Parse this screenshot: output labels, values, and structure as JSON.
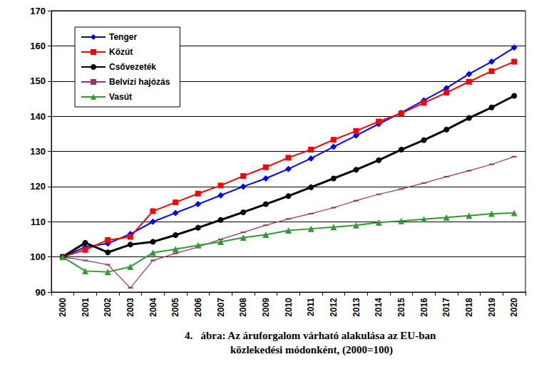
{
  "chart_data": {
    "type": "line",
    "title": "4.   ábra: Az áruforgalom várható alakulása az EU-ban közlekedési módonként, (2000=100)",
    "categories": [
      "2000",
      "2001",
      "2002",
      "2003",
      "2004",
      "2005",
      "2006",
      "2007",
      "2008",
      "2009",
      "2010",
      "2011",
      "2012",
      "2013",
      "2014",
      "2015",
      "2016",
      "2017",
      "2018",
      "2019",
      "2020"
    ],
    "series": [
      {
        "name": "Tenger",
        "color": "#0000ff",
        "marker": "diamond",
        "line_style": "solid",
        "values": [
          100,
          102.8,
          103.8,
          106.5,
          110,
          112.5,
          115,
          117.5,
          120,
          122.3,
          125,
          128,
          131.3,
          134.5,
          137.8,
          141,
          144.5,
          148,
          152,
          155.5,
          159.5
        ]
      },
      {
        "name": "Közút",
        "color": "#ff0000",
        "marker": "square",
        "line_style": "solid",
        "values": [
          100,
          102,
          104.8,
          105.7,
          113,
          115.5,
          118,
          120.3,
          123,
          125.5,
          128.2,
          130.5,
          133.3,
          135.8,
          138.5,
          140.8,
          143.8,
          146.7,
          149.8,
          152.8,
          155.5
        ]
      },
      {
        "name": "Csővezeték",
        "color": "#000000",
        "marker": "circle",
        "line_style": "solid",
        "values": [
          100,
          104,
          101.3,
          103.5,
          104.3,
          106.2,
          108.3,
          110.5,
          112.7,
          115,
          117.3,
          119.8,
          122.3,
          124.8,
          127.5,
          130.5,
          133.2,
          136.2,
          139.5,
          142.5,
          145.8
        ]
      },
      {
        "name": "Belvízi hajózás",
        "color": "#993366",
        "marker": "dash",
        "line_style": "solid",
        "values": [
          100,
          99,
          97.8,
          91.2,
          99,
          101,
          102.8,
          105,
          107,
          109,
          110.8,
          112.3,
          114,
          116,
          117.8,
          119.3,
          121,
          122.8,
          124.5,
          126.3,
          128.5
        ]
      },
      {
        "name": "Vasút",
        "color": "#339933",
        "marker": "triangle",
        "line_style": "solid",
        "values": [
          100,
          96,
          95.7,
          97.2,
          101.2,
          102.2,
          103.3,
          104.3,
          105.5,
          106.3,
          107.5,
          108,
          108.5,
          109,
          109.8,
          110.2,
          110.7,
          111.2,
          111.7,
          112.3,
          112.5
        ]
      }
    ],
    "ylim": [
      90,
      170
    ],
    "yticks": [
      90,
      100,
      110,
      120,
      130,
      140,
      150,
      160,
      170
    ],
    "grid": true,
    "legend": "upper left"
  }
}
